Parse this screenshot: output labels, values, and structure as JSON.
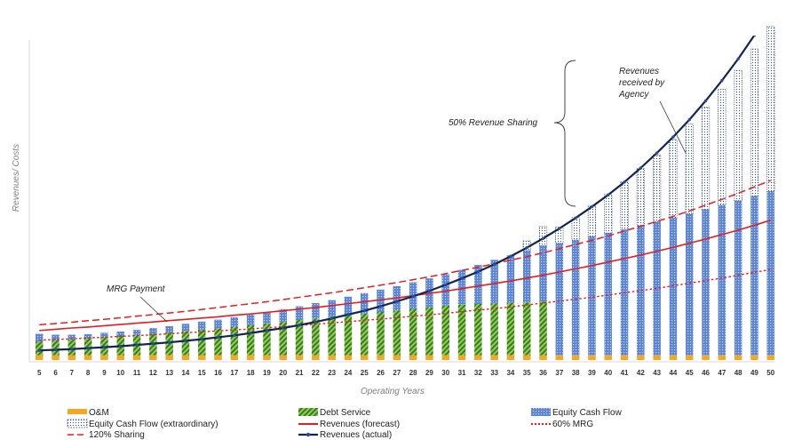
{
  "chart_data": {
    "type": "bar",
    "xlabel": "Operating Years",
    "ylabel": "Revenues/ Costs",
    "categories": [
      "5",
      "6",
      "7",
      "8",
      "9",
      "10",
      "11",
      "12",
      "13",
      "14",
      "15",
      "16",
      "17",
      "18",
      "19",
      "20",
      "21",
      "22",
      "23",
      "24",
      "25",
      "26",
      "27",
      "28",
      "29",
      "30",
      "31",
      "32",
      "33",
      "34",
      "35",
      "36",
      "37",
      "38",
      "39",
      "40",
      "41",
      "42",
      "43",
      "44",
      "45",
      "46",
      "47",
      "48",
      "49",
      "50"
    ],
    "ylim": [
      0,
      100
    ],
    "grid": false,
    "legend_position": "bottom",
    "series": [
      {
        "name": "O&M",
        "kind": "stacked-bar",
        "color": "#f5a623",
        "values": [
          1.5,
          1.5,
          1.5,
          1.5,
          1.5,
          1.5,
          1.5,
          1.5,
          1.5,
          1.5,
          1.5,
          1.5,
          1.5,
          1.5,
          1.5,
          1.5,
          1.5,
          1.5,
          1.5,
          1.5,
          1.5,
          1.5,
          1.5,
          1.5,
          1.5,
          1.5,
          1.5,
          1.5,
          1.5,
          1.5,
          1.5,
          1.5,
          1.5,
          1.5,
          1.5,
          1.5,
          1.5,
          1.5,
          1.5,
          1.5,
          1.5,
          1.5,
          1.5,
          1.5,
          1.5,
          1.5
        ]
      },
      {
        "name": "Debt Service",
        "kind": "stacked-bar",
        "color": "#4e8f2a",
        "values": [
          4.3,
          4.6,
          4.9,
          5.2,
          5.6,
          6.0,
          6.3,
          6.7,
          7.1,
          7.5,
          8.0,
          8.4,
          8.9,
          9.4,
          9.9,
          10.4,
          11.0,
          11.5,
          12.0,
          12.5,
          13.0,
          13.5,
          14.0,
          14.5,
          15.0,
          15.5,
          15.8,
          16.0,
          16.2,
          16.4,
          16.5,
          16.8,
          0,
          0,
          0,
          0,
          0,
          0,
          0,
          0,
          0,
          0,
          0,
          0,
          0,
          0
        ]
      },
      {
        "name": "Equity Cash Flow",
        "kind": "stacked-bar",
        "color": "#4472c4",
        "values": [
          2.4,
          1.8,
          1.5,
          1.4,
          1.4,
          1.4,
          1.6,
          1.8,
          2.0,
          2.3,
          2.5,
          2.7,
          3.0,
          3.3,
          3.6,
          4.0,
          4.3,
          4.8,
          5.2,
          5.8,
          6.4,
          7.0,
          7.6,
          8.3,
          9.0,
          9.8,
          10.9,
          12.2,
          13.6,
          14.8,
          16.2,
          17.4,
          35.0,
          36.0,
          37.1,
          38.2,
          39.3,
          40.5,
          41.7,
          42.9,
          44.2,
          45.5,
          46.9,
          48.3,
          49.7,
          51.2
        ]
      },
      {
        "name": "Equity Cash Flow (extraordinary)",
        "kind": "stacked-bar",
        "color": "#1f3d7a",
        "values": [
          0,
          0,
          0,
          0,
          0,
          0,
          0,
          0,
          0,
          0,
          0,
          0,
          0,
          0,
          0,
          0,
          0,
          0,
          0,
          0,
          0,
          0,
          0,
          0,
          0,
          0,
          0,
          0,
          0,
          0,
          3.0,
          6.0,
          5.0,
          7.0,
          9.5,
          12.0,
          14.8,
          17.8,
          20.9,
          24.5,
          28.0,
          32.0,
          36.2,
          40.7,
          46.0,
          51.5
        ]
      },
      {
        "name": "Revenues (forecast)",
        "kind": "line",
        "style": "solid",
        "color": "#e02020",
        "values": [
          9.2,
          9.6,
          10.0,
          10.3,
          10.7,
          11.1,
          11.5,
          11.9,
          12.3,
          12.7,
          13.1,
          13.5,
          14.0,
          14.4,
          14.9,
          15.4,
          15.9,
          16.4,
          17.0,
          17.6,
          18.2,
          18.8,
          19.4,
          20.1,
          20.8,
          21.5,
          22.3,
          23.1,
          23.9,
          24.7,
          25.6,
          26.5,
          27.5,
          28.5,
          29.5,
          30.6,
          31.7,
          32.8,
          34.0,
          35.2,
          36.5,
          37.8,
          39.2,
          40.6,
          42.1,
          43.7
        ]
      },
      {
        "name": "60% MRG",
        "kind": "line",
        "style": "dotted",
        "color": "#e02020",
        "values": [
          6.2,
          6.4,
          6.6,
          6.9,
          7.1,
          7.4,
          7.6,
          7.9,
          8.2,
          8.5,
          8.8,
          9.1,
          9.4,
          9.7,
          10.1,
          10.4,
          10.8,
          11.2,
          11.6,
          12.0,
          12.4,
          12.8,
          13.2,
          13.7,
          14.1,
          14.6,
          15.1,
          15.6,
          16.1,
          16.6,
          17.2,
          17.8,
          18.4,
          19.0,
          19.6,
          20.3,
          21.0,
          21.7,
          22.4,
          23.2,
          24.0,
          24.8,
          25.6,
          26.5,
          27.4,
          28.3
        ]
      },
      {
        "name": "120% Sharing",
        "kind": "line",
        "style": "dashed",
        "color": "#e02020",
        "values": [
          11.0,
          11.4,
          11.8,
          12.3,
          12.7,
          13.2,
          13.7,
          14.2,
          14.7,
          15.2,
          15.8,
          16.4,
          17.0,
          17.6,
          18.2,
          18.9,
          19.6,
          20.3,
          21.0,
          21.8,
          22.6,
          23.4,
          24.2,
          25.1,
          26.0,
          27.0,
          28.0,
          29.0,
          30.1,
          31.2,
          32.3,
          33.5,
          34.8,
          36.1,
          37.4,
          38.8,
          40.3,
          41.8,
          43.3,
          44.9,
          46.6,
          48.4,
          50.2,
          52.1,
          54.1,
          56.1
        ]
      },
      {
        "name": "Revenues (actual)",
        "kind": "line",
        "style": "solid-markers",
        "color": "#12264f",
        "values": [
          3.0,
          3.2,
          3.4,
          3.7,
          4.0,
          4.3,
          4.7,
          5.1,
          5.5,
          6.0,
          6.5,
          7.1,
          7.7,
          8.4,
          9.2,
          10.0,
          10.9,
          11.9,
          13.0,
          14.2,
          15.4,
          16.8,
          18.3,
          19.9,
          21.6,
          23.5,
          25.5,
          27.6,
          29.9,
          32.4,
          35.1,
          38.0,
          41.1,
          44.4,
          47.9,
          51.6,
          55.6,
          60.0,
          64.7,
          69.7,
          75.1,
          81.0,
          87.3,
          94.1,
          101.5,
          109.4
        ]
      }
    ],
    "annotations": [
      {
        "text": "MRG Payment"
      },
      {
        "text": "50% Revenue Sharing"
      },
      {
        "text_lines": [
          "Revenues",
          "received by",
          "Agency"
        ]
      }
    ]
  }
}
